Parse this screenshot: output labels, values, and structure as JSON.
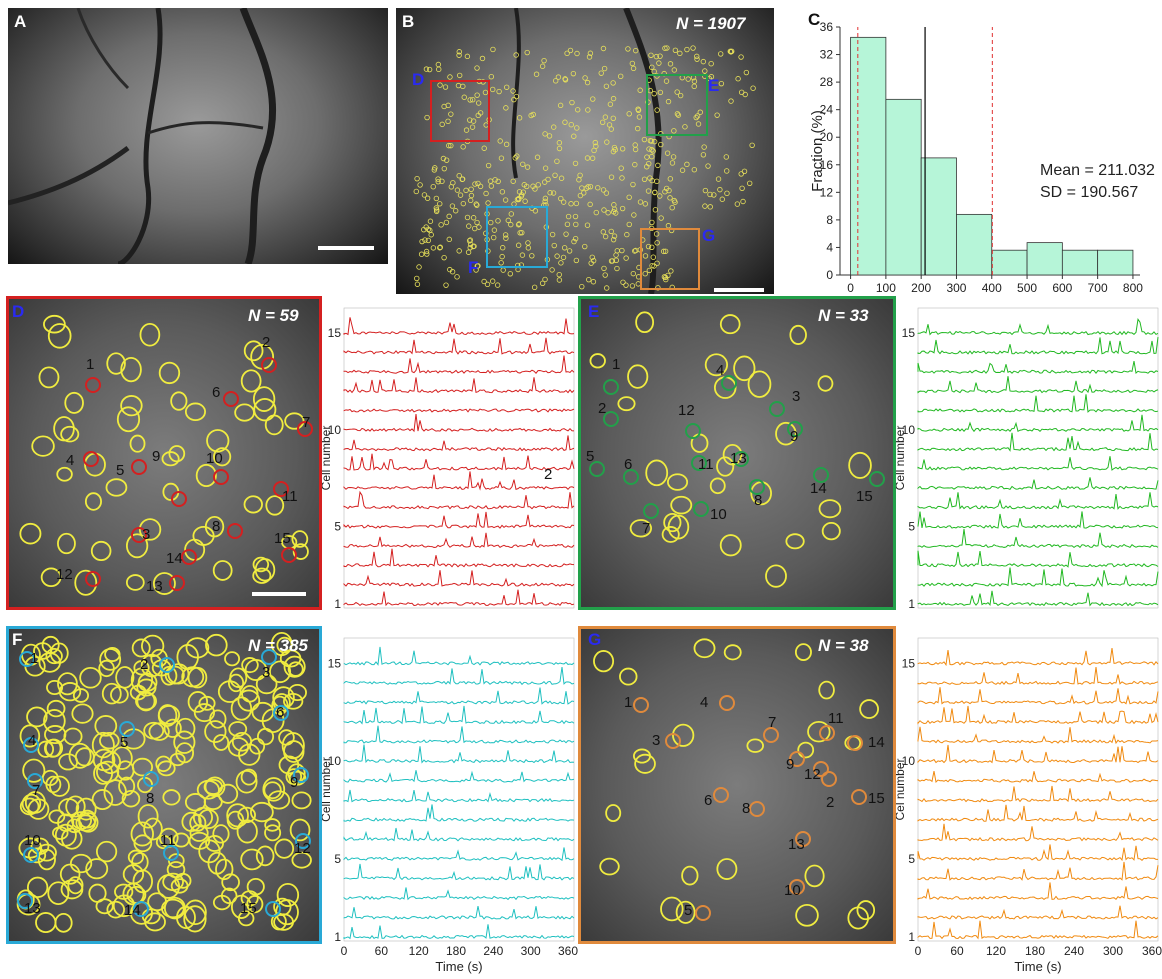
{
  "panels": {
    "A": {
      "label": "A"
    },
    "B": {
      "label": "B",
      "n_text": "N = 1907",
      "boxes": [
        {
          "label": "D",
          "color": "#d42020"
        },
        {
          "label": "E",
          "color": "#22a04a"
        },
        {
          "label": "F",
          "color": "#29a9d6"
        },
        {
          "label": "G",
          "color": "#e08a3c"
        }
      ]
    },
    "C": {
      "label": "C",
      "mean_text": "Mean = 211.032",
      "sd_text": "SD = 190.567"
    },
    "D": {
      "label": "D",
      "n_text": "N = 59",
      "color": "#d42020",
      "trace_color": "#d42020",
      "cell_labels": [
        "1",
        "2",
        "3",
        "4",
        "5",
        "6",
        "7",
        "8",
        "9",
        "10",
        "11",
        "12",
        "13",
        "14",
        "15"
      ]
    },
    "E": {
      "label": "E",
      "n_text": "N = 33",
      "color": "#22a04a",
      "trace_color": "#22b822",
      "cell_labels": [
        "1",
        "2",
        "3",
        "4",
        "5",
        "6",
        "7",
        "8",
        "9",
        "10",
        "11",
        "12",
        "13",
        "14",
        "15"
      ]
    },
    "F": {
      "label": "F",
      "n_text": "N = 385",
      "color": "#29a9d6",
      "trace_color": "#1fc0c0",
      "cell_labels": [
        "1",
        "2",
        "3",
        "4",
        "5",
        "6",
        "7",
        "8",
        "9",
        "10",
        "11",
        "12",
        "13",
        "14",
        "15"
      ]
    },
    "G": {
      "label": "G",
      "n_text": "N = 38",
      "color": "#e08a3c",
      "trace_color": "#f08a10",
      "cell_labels": [
        "1",
        "2",
        "3",
        "4",
        "5",
        "6",
        "7",
        "8",
        "9",
        "10",
        "11",
        "12",
        "13",
        "14",
        "15"
      ]
    }
  },
  "trace_axes": {
    "ylabel_top": "Cell number",
    "ylabel_bottom_right": "Cel  number",
    "yticks": [
      "1",
      "5",
      "10",
      "15"
    ],
    "xticks": [
      "0",
      "60",
      "120",
      "180",
      "240",
      "300",
      "360"
    ],
    "xlabel": "Time (s)",
    "trace_annot_D": "2"
  },
  "chart_data": {
    "type": "bar",
    "bin_edges": [
      0,
      100,
      200,
      300,
      400,
      500,
      600,
      700,
      800
    ],
    "values": [
      34.5,
      25.5,
      17,
      8.8,
      3.6,
      4.7,
      3.6,
      3.6
    ],
    "ylabel": "Fraction (%)",
    "xlabel": "",
    "xticks": [
      "0",
      "100",
      "200",
      "300",
      "400",
      "500",
      "600",
      "700",
      "800"
    ],
    "yticks": [
      "0",
      "4",
      "8",
      "12",
      "16",
      "20",
      "24",
      "28",
      "32",
      "36"
    ],
    "xlim": [
      -30,
      820
    ],
    "ylim": [
      0,
      36
    ],
    "mean": 211.032,
    "sd": 190.567,
    "mean_line_color": "#000000",
    "sd_line_color": "#e03030",
    "bar_color": "#b6f5d8"
  }
}
